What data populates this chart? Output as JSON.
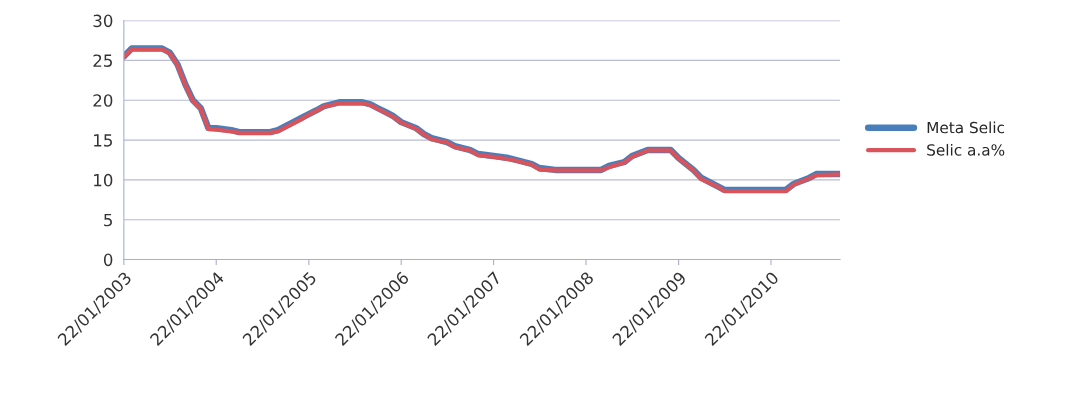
{
  "chart_data": {
    "type": "line",
    "x": [
      "2003-01-22",
      "2003-02-22",
      "2003-03-22",
      "2003-04-22",
      "2003-05-22",
      "2003-06-22",
      "2003-07-22",
      "2003-08-22",
      "2003-09-22",
      "2003-10-22",
      "2003-11-22",
      "2003-12-22",
      "2004-01-22",
      "2004-03-22",
      "2004-04-22",
      "2004-05-22",
      "2004-06-22",
      "2004-07-22",
      "2004-08-22",
      "2004-09-22",
      "2004-10-22",
      "2004-11-22",
      "2004-12-22",
      "2005-01-22",
      "2005-02-22",
      "2005-03-22",
      "2005-04-22",
      "2005-05-22",
      "2005-06-22",
      "2005-07-22",
      "2005-08-22",
      "2005-09-22",
      "2005-10-22",
      "2005-11-22",
      "2005-12-22",
      "2006-01-22",
      "2006-03-22",
      "2006-04-22",
      "2006-05-22",
      "2006-07-22",
      "2006-08-22",
      "2006-10-22",
      "2006-11-22",
      "2007-01-22",
      "2007-03-22",
      "2007-04-22",
      "2007-06-22",
      "2007-07-22",
      "2007-09-22",
      "2007-12-22",
      "2008-03-22",
      "2008-04-22",
      "2008-06-22",
      "2008-07-22",
      "2008-09-22",
      "2008-12-22",
      "2009-01-22",
      "2009-03-22",
      "2009-04-22",
      "2009-06-22",
      "2009-07-22",
      "2009-12-22",
      "2010-03-22",
      "2010-04-22",
      "2010-06-22",
      "2010-07-22",
      "2010-10-22"
    ],
    "series": [
      {
        "name": "Meta Selic",
        "color": "#4a7ebb",
        "values": [
          25.5,
          26.5,
          26.5,
          26.5,
          26.5,
          26.5,
          26,
          24.5,
          22,
          20,
          19,
          16.5,
          16.5,
          16.25,
          16,
          16,
          16,
          16,
          16,
          16.25,
          16.75,
          17.25,
          17.75,
          18.25,
          18.75,
          19.25,
          19.5,
          19.75,
          19.75,
          19.75,
          19.75,
          19.5,
          19,
          18.5,
          18,
          17.25,
          16.5,
          15.75,
          15.25,
          14.75,
          14.25,
          13.75,
          13.25,
          13,
          12.75,
          12.5,
          12,
          11.5,
          11.25,
          11.25,
          11.25,
          11.75,
          12.25,
          13,
          13.75,
          13.75,
          12.75,
          11.25,
          10.25,
          9.25,
          8.75,
          8.75,
          8.75,
          9.5,
          10.25,
          10.75,
          10.75
        ]
      },
      {
        "name": "Selic a.a%",
        "color": "#d9535b",
        "values": [
          25.4,
          26.4,
          26.4,
          26.4,
          26.4,
          26.4,
          25.9,
          24.4,
          21.9,
          19.9,
          18.9,
          16.4,
          16.3,
          16.1,
          15.9,
          15.9,
          15.9,
          15.9,
          15.9,
          16.1,
          16.6,
          17.1,
          17.6,
          18.2,
          18.7,
          19.2,
          19.4,
          19.6,
          19.6,
          19.6,
          19.6,
          19.4,
          18.9,
          18.4,
          17.9,
          17.2,
          16.4,
          15.7,
          15.1,
          14.7,
          14.1,
          13.7,
          13.1,
          12.9,
          12.6,
          12.4,
          11.9,
          11.3,
          11.2,
          11.2,
          11.2,
          11.6,
          12.2,
          12.9,
          13.7,
          13.7,
          12.7,
          11.2,
          10.1,
          9.2,
          8.6,
          8.6,
          8.6,
          9.4,
          10.2,
          10.6,
          10.7
        ]
      }
    ],
    "ylim": [
      0,
      30
    ],
    "yticks": [
      0,
      5,
      10,
      15,
      20,
      25,
      30
    ],
    "xlim": [
      "2003-01-22",
      "2010-10-22"
    ],
    "xticks": [
      {
        "value": "2003-01-22",
        "label": "22/01/2003"
      },
      {
        "value": "2004-01-22",
        "label": "22/01/2004"
      },
      {
        "value": "2005-01-22",
        "label": "22/01/2005"
      },
      {
        "value": "2006-01-22",
        "label": "22/01/2006"
      },
      {
        "value": "2007-01-22",
        "label": "22/01/2007"
      },
      {
        "value": "2008-01-22",
        "label": "22/01/2008"
      },
      {
        "value": "2009-01-22",
        "label": "22/01/2009"
      },
      {
        "value": "2010-01-22",
        "label": "22/01/2010"
      }
    ],
    "grid": "y",
    "legend": "right",
    "marker": "none",
    "line_style": "solid"
  }
}
